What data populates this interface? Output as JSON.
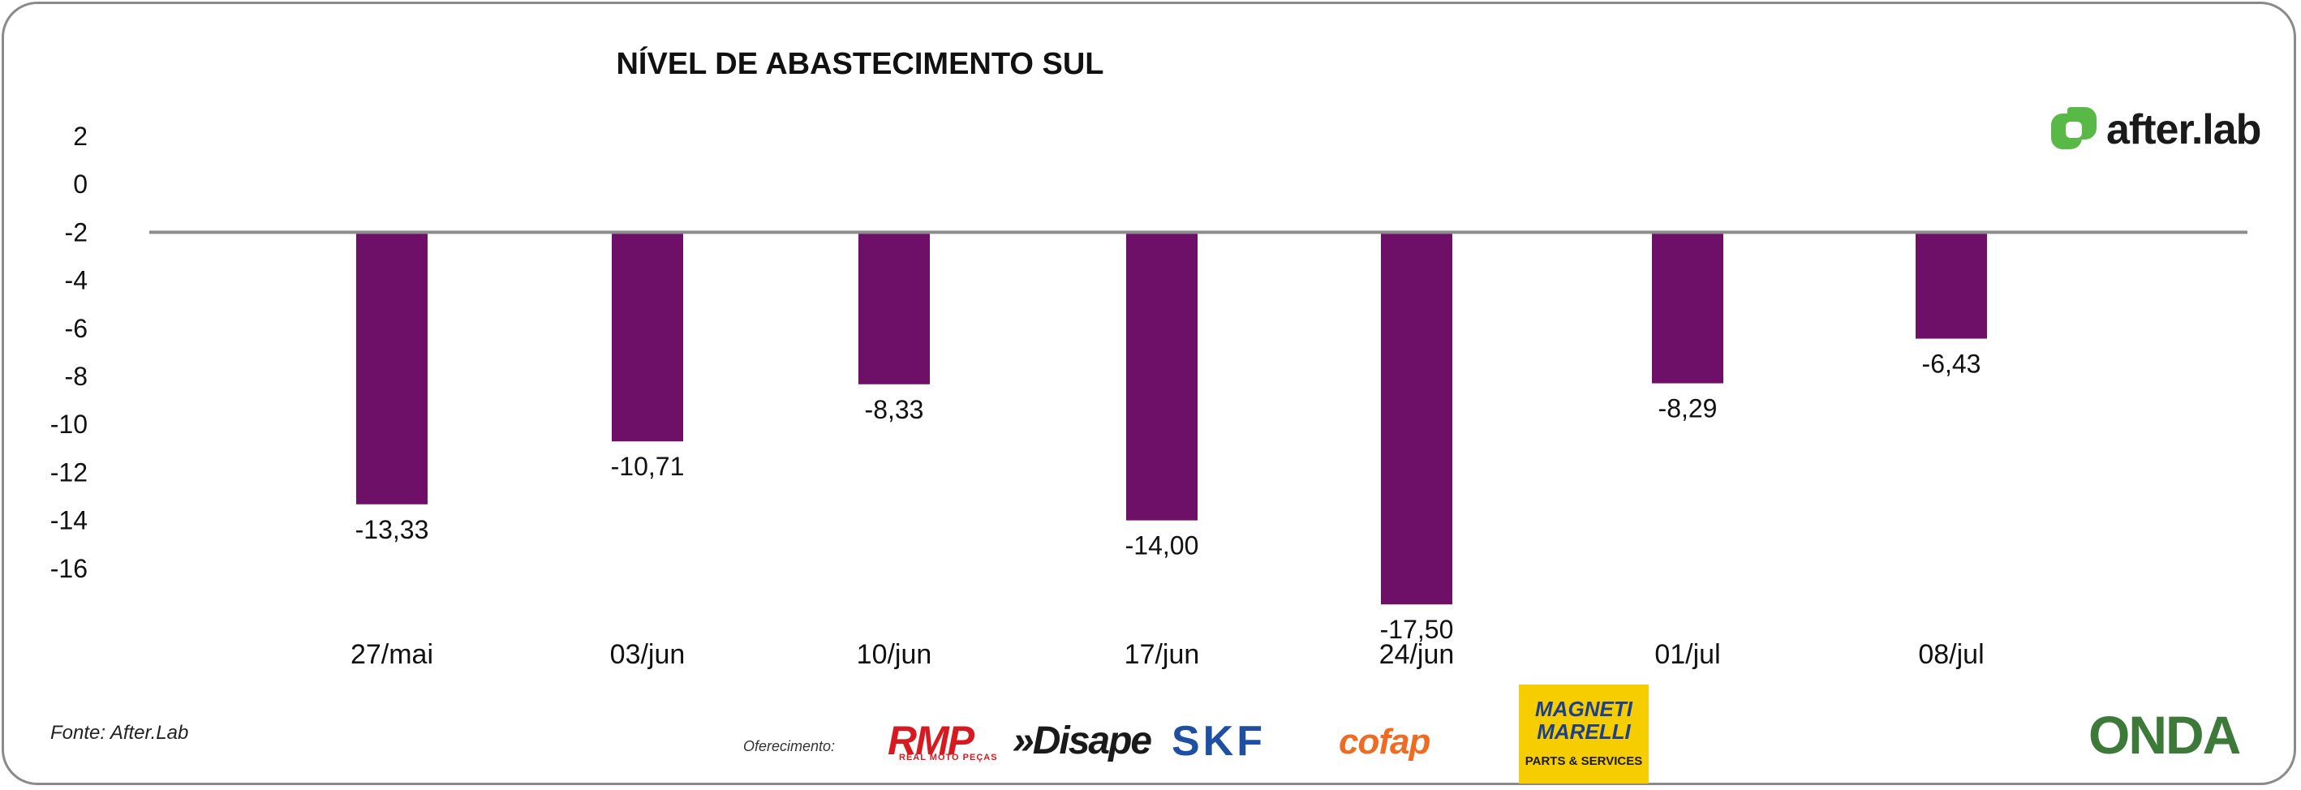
{
  "chart_data": {
    "type": "bar",
    "title": "NÍVEL DE ABASTECIMENTO SUL",
    "categories": [
      "27/mai",
      "03/jun",
      "10/jun",
      "17/jun",
      "24/jun",
      "01/jul",
      "08/jul"
    ],
    "values": [
      -13.33,
      -10.71,
      -8.33,
      -14.0,
      -17.5,
      -8.29,
      -6.43
    ],
    "value_labels": [
      "-13,33",
      "-10,71",
      "-8,33",
      "-14,00",
      "-17,50",
      "-8,29",
      "-6,43"
    ],
    "baseline": -2,
    "y_ticks": [
      2,
      0,
      -2,
      -4,
      -6,
      -8,
      -10,
      -12,
      -14,
      -16
    ],
    "xlabel": "",
    "ylabel": "",
    "bar_color": "#6e0f68",
    "baseline_color": "#8c8c8c",
    "grid": false
  },
  "source": "Fonte: After.Lab",
  "sponsor_label": "Oferecimento:",
  "logos": {
    "afterlab": "after.lab",
    "rmp": "RMP",
    "rmp_sub": "REAL MOTO PEÇAS",
    "disape": "»Disape",
    "skf": "SKF",
    "cofap": "cofap",
    "magneti": "MAGNETI MARELLI",
    "magneti_sub": "PARTS & SERVICES",
    "onda": "ONDA"
  }
}
